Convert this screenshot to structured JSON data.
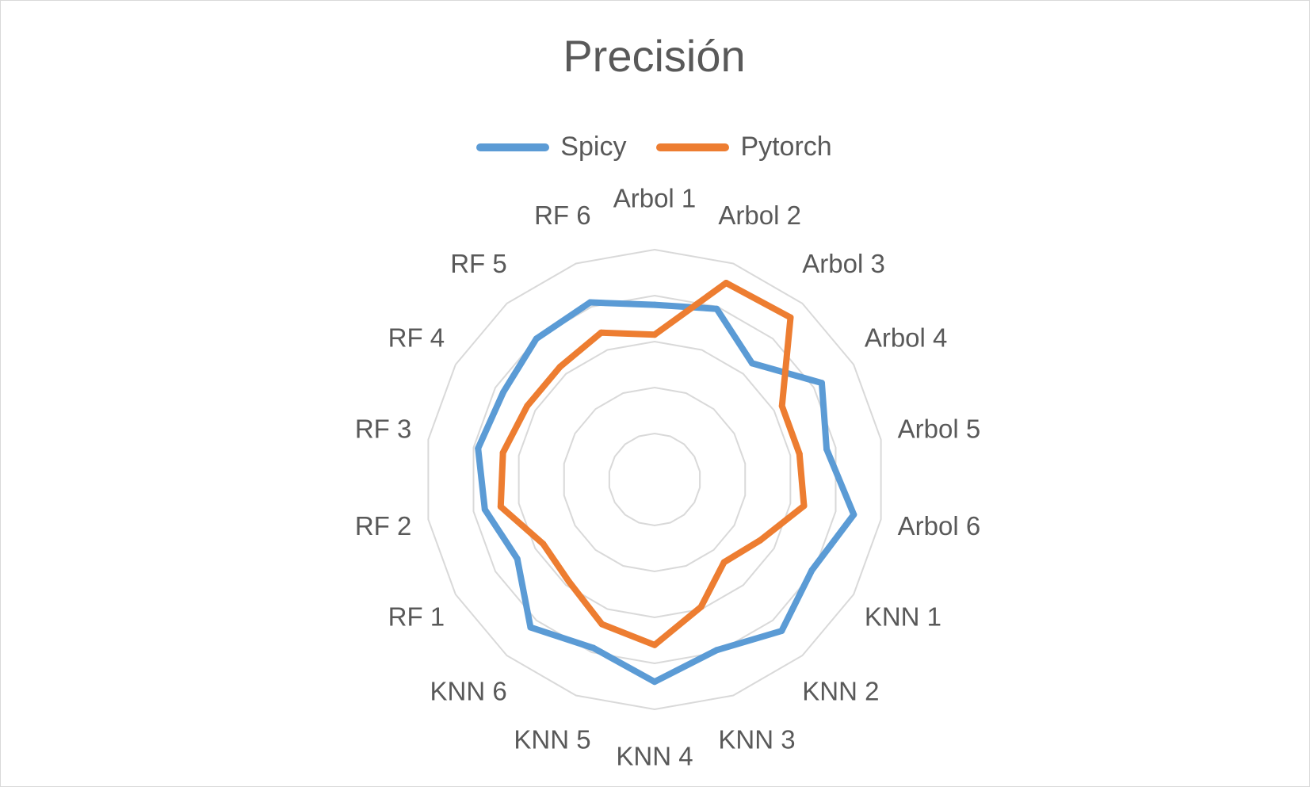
{
  "chart_data": {
    "type": "radar",
    "title": "Precisión",
    "categories": [
      "Arbol 1",
      "Arbol 2",
      "Arbol 3",
      "Arbol 4",
      "Arbol 5",
      "Arbol 6",
      "KNN 1",
      "KNN 2",
      "KNN 3",
      "KNN 4",
      "KNN 5",
      "KNN 6",
      "RF 1",
      "RF 2",
      "RF 3",
      "RF 4",
      "RF 5",
      "RF 6"
    ],
    "series": [
      {
        "name": "Spicy",
        "color": "#5b9bd5",
        "values": [
          0.76,
          0.79,
          0.66,
          0.84,
          0.76,
          0.88,
          0.79,
          0.86,
          0.79,
          0.88,
          0.78,
          0.84,
          0.69,
          0.75,
          0.78,
          0.76,
          0.8,
          0.82
        ]
      },
      {
        "name": "Pytorch",
        "color": "#ed7d31",
        "values": [
          0.63,
          0.91,
          0.92,
          0.64,
          0.64,
          0.66,
          0.53,
          0.47,
          0.59,
          0.72,
          0.67,
          0.58,
          0.56,
          0.68,
          0.67,
          0.64,
          0.64,
          0.68
        ]
      }
    ],
    "ylim": [
      0,
      1
    ],
    "rings": 5,
    "grid": true,
    "legend_position": "top"
  }
}
